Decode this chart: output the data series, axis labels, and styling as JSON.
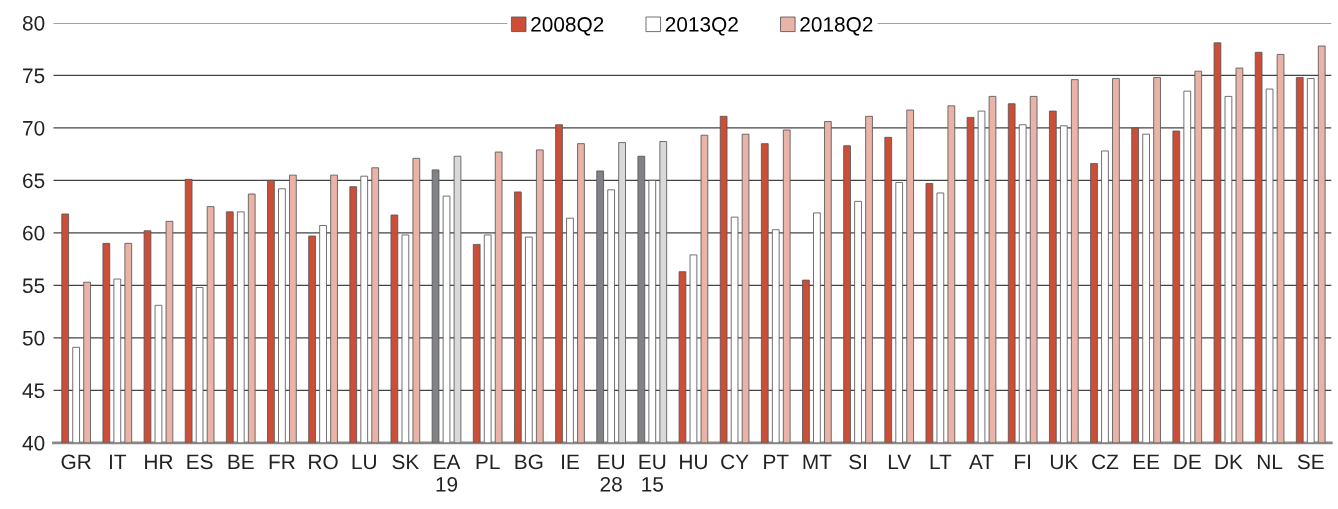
{
  "chart_data": {
    "type": "bar",
    "categories": [
      "GR",
      "IT",
      "HR",
      "ES",
      "BE",
      "FR",
      "RO",
      "LU",
      "SK",
      "EA\n19",
      "PL",
      "BG",
      "IE",
      "EU\n28",
      "EU\n15",
      "HU",
      "CY",
      "PT",
      "MT",
      "SI",
      "LV",
      "LT",
      "AT",
      "FI",
      "UK",
      "CZ",
      "EE",
      "DE",
      "DK",
      "NL",
      "SE"
    ],
    "series": [
      {
        "name": "2008Q2",
        "color": "#cc4e37",
        "colors": [
          "#cc4e37",
          "#cc4e37",
          "#cc4e37",
          "#cc4e37",
          "#cc4e37",
          "#cc4e37",
          "#cc4e37",
          "#cc4e37",
          "#cc4e37",
          "#818285",
          "#cc4e37",
          "#cc4e37",
          "#cc4e37",
          "#818285",
          "#818285",
          "#cc4e37",
          "#cc4e37",
          "#cc4e37",
          "#cc4e37",
          "#cc4e37",
          "#cc4e37",
          "#cc4e37",
          "#cc4e37",
          "#cc4e37",
          "#cc4e37",
          "#cc4e37",
          "#cc4e37",
          "#cc4e37",
          "#cc4e37",
          "#cc4e37",
          "#cc4e37"
        ],
        "values": [
          61.8,
          59.0,
          60.2,
          65.1,
          62.0,
          65.0,
          59.7,
          64.4,
          61.7,
          66.0,
          58.9,
          63.9,
          70.3,
          65.9,
          67.3,
          56.3,
          71.1,
          68.5,
          55.5,
          68.3,
          69.1,
          64.7,
          71.0,
          72.3,
          71.6,
          66.6,
          70.0,
          69.7,
          78.1,
          77.2,
          74.8
        ]
      },
      {
        "name": "2013Q2",
        "color": "#ffffff",
        "values": [
          49.1,
          55.6,
          53.1,
          54.8,
          62.0,
          64.2,
          60.7,
          65.4,
          59.8,
          63.5,
          59.8,
          59.6,
          61.4,
          64.1,
          65.0,
          57.9,
          61.5,
          60.3,
          61.9,
          63.0,
          64.8,
          63.8,
          71.6,
          70.3,
          70.2,
          67.8,
          69.4,
          73.5,
          73.0,
          73.7,
          74.7
        ]
      },
      {
        "name": "2018Q2",
        "color": "#e9b3a8",
        "colors": [
          "#e9b3a8",
          "#e9b3a8",
          "#e9b3a8",
          "#e9b3a8",
          "#e9b3a8",
          "#e9b3a8",
          "#e9b3a8",
          "#e9b3a8",
          "#e9b3a8",
          "#d9d9db",
          "#e9b3a8",
          "#e9b3a8",
          "#e9b3a8",
          "#d9d9db",
          "#d9d9db",
          "#e9b3a8",
          "#e9b3a8",
          "#e9b3a8",
          "#e9b3a8",
          "#e9b3a8",
          "#e9b3a8",
          "#e9b3a8",
          "#e9b3a8",
          "#e9b3a8",
          "#e9b3a8",
          "#e9b3a8",
          "#e9b3a8",
          "#e9b3a8",
          "#e9b3a8",
          "#e9b3a8",
          "#e9b3a8"
        ],
        "values": [
          55.3,
          59.0,
          61.1,
          62.5,
          63.7,
          65.5,
          65.5,
          66.2,
          67.1,
          67.3,
          67.7,
          67.9,
          68.5,
          68.6,
          68.7,
          69.3,
          69.4,
          69.8,
          70.6,
          71.1,
          71.7,
          72.1,
          73.0,
          73.0,
          74.6,
          74.7,
          74.8,
          75.4,
          75.7,
          77.0,
          77.8
        ]
      }
    ],
    "ylim": [
      40,
      80
    ],
    "yticks": [
      40,
      45,
      50,
      55,
      60,
      65,
      70,
      75,
      80
    ],
    "grid": "y",
    "legend": "top"
  }
}
